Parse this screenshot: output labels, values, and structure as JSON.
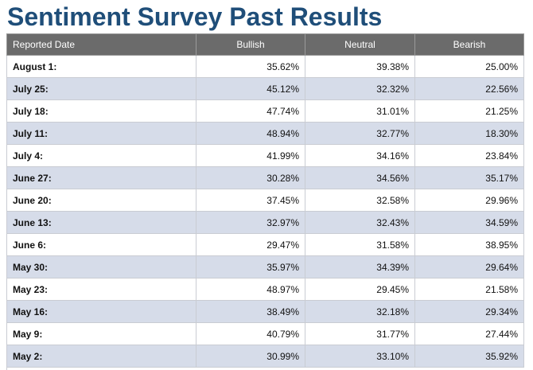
{
  "title": "Sentiment Survey Past Results",
  "table": {
    "headers": [
      "Reported Date",
      "Bullish",
      "Neutral",
      "Bearish"
    ],
    "rows": [
      {
        "date": "August 1:",
        "bullish": "35.62%",
        "neutral": "39.38%",
        "bearish": "25.00%"
      },
      {
        "date": "July 25:",
        "bullish": "45.12%",
        "neutral": "32.32%",
        "bearish": "22.56%"
      },
      {
        "date": "July 18:",
        "bullish": "47.74%",
        "neutral": "31.01%",
        "bearish": "21.25%"
      },
      {
        "date": "July 11:",
        "bullish": "48.94%",
        "neutral": "32.77%",
        "bearish": "18.30%"
      },
      {
        "date": "July 4:",
        "bullish": "41.99%",
        "neutral": "34.16%",
        "bearish": "23.84%"
      },
      {
        "date": "June 27:",
        "bullish": "30.28%",
        "neutral": "34.56%",
        "bearish": "35.17%"
      },
      {
        "date": "June 20:",
        "bullish": "37.45%",
        "neutral": "32.58%",
        "bearish": "29.96%"
      },
      {
        "date": "June 13:",
        "bullish": "32.97%",
        "neutral": "32.43%",
        "bearish": "34.59%"
      },
      {
        "date": "June 6:",
        "bullish": "29.47%",
        "neutral": "31.58%",
        "bearish": "38.95%"
      },
      {
        "date": "May 30:",
        "bullish": "35.97%",
        "neutral": "34.39%",
        "bearish": "29.64%"
      },
      {
        "date": "May 23:",
        "bullish": "48.97%",
        "neutral": "29.45%",
        "bearish": "21.58%"
      },
      {
        "date": "May 16:",
        "bullish": "38.49%",
        "neutral": "32.18%",
        "bearish": "29.34%"
      },
      {
        "date": "May 9:",
        "bullish": "40.79%",
        "neutral": "31.77%",
        "bearish": "27.44%"
      },
      {
        "date": "May 2:",
        "bullish": "30.99%",
        "neutral": "33.10%",
        "bearish": "35.92%"
      }
    ]
  },
  "colors": {
    "title": "#1f4e79",
    "header_bg": "#6b6b6b",
    "row_alt_bg": "#d6dce9"
  }
}
